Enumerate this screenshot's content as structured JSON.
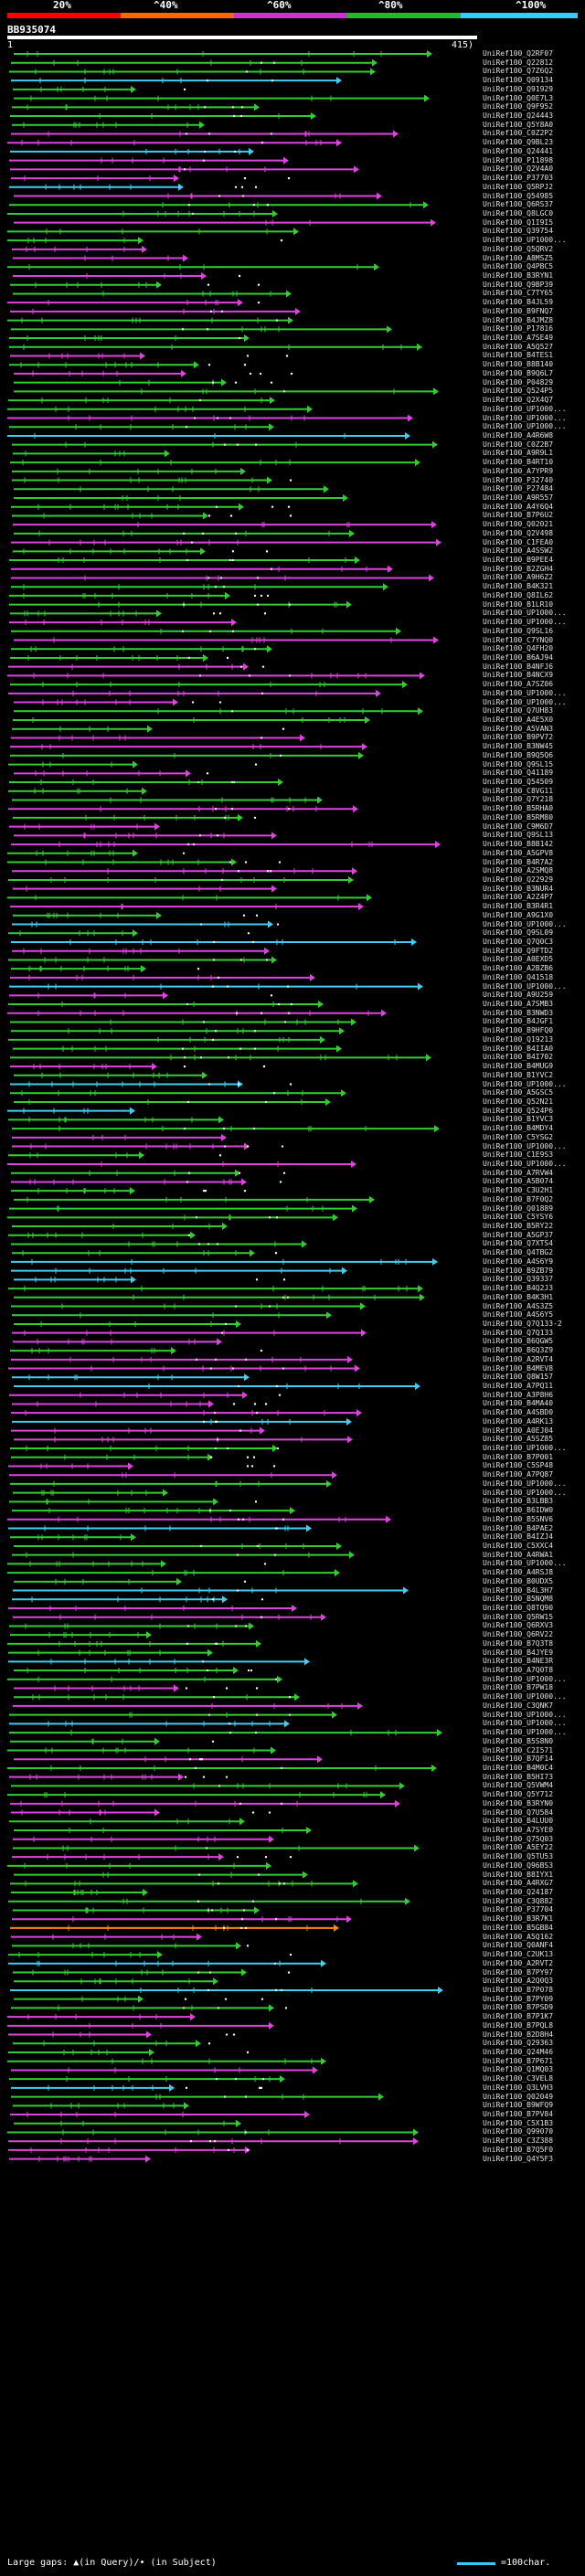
{
  "scale": {
    "labels": [
      "20%",
      "^40%",
      "^60%",
      "^80%",
      "^100%"
    ],
    "segments": [
      {
        "color": "#ff0000"
      },
      {
        "color": "#ff6600"
      },
      {
        "color": "#cc33cc"
      },
      {
        "color": "#22bb22"
      },
      {
        "color": "#33ccff"
      }
    ]
  },
  "query": {
    "id": "BB935074",
    "start": "1",
    "end": "415)"
  },
  "colors": {
    "green": "#33cc33",
    "magenta": "#dd44dd",
    "cyan": "#44ccee",
    "orange": "#ff8800",
    "label": "#e0e0e0"
  },
  "hits": [
    "UniRef100_Q2RF07",
    "UniRef100_Q22812",
    "UniRef100_Q7Z6Q2",
    "UniRef100_Q09134",
    "UniRef100_Q91929",
    "UniRef100_Q0E7L3",
    "UniRef100_Q9F952",
    "UniRef100_Q24443",
    "UniRef100_Q5Y8A0",
    "UniRef100_C0Z2P2",
    "UniRef100_Q9BL23",
    "UniRef100_Q24441",
    "UniRef100_P11898",
    "UniRef100_Q2V4A0",
    "UniRef100_P37703",
    "UniRef100_Q5RPJ2",
    "UniRef100_Q54985",
    "UniRef100_Q6RS37",
    "UniRef100_Q8LGC0",
    "UniRef100_Q1I9I5",
    "UniRef100_Q39754",
    "UniRef100_UP1000...",
    "UniRef100_Q5QRV2",
    "UniRef100_A8MSZ5",
    "UniRef100_Q4PBC5",
    "UniRef100_B3RYN1",
    "UniRef100_Q9BP39",
    "UniRef100_C7TY65",
    "UniRef100_B4JL59",
    "UniRef100_B9FNQ7",
    "UniRef100_B4JMZ8",
    "UniRef100_P17816",
    "UniRef100_A7SE49",
    "UniRef100_A5Q527",
    "UniRef100_B4TES1",
    "UniRef100_B8B140",
    "UniRef100_B9Q6L7",
    "UniRef100_P04829",
    "UniRef100_Q524P5",
    "UniRef100_Q2X4Q7",
    "UniRef100_UP1000...",
    "UniRef100_UP1000...",
    "UniRef100_UP1000...",
    "UniRef100_A4R6W8",
    "UniRef100_C0Z2B7",
    "UniRef100_A9R9L1",
    "UniRef100_B4RT10",
    "UniRef100_A7YPR9",
    "UniRef100_P32740",
    "UniRef100_P27484",
    "UniRef100_A9R557",
    "UniRef100_A4Y6Q4",
    "UniRef100_B7P6U2",
    "UniRef100_Q02021",
    "UniRef100_Q2V498",
    "UniRef100_C1FEA0",
    "UniRef100_A4SSW2",
    "UniRef100_B9PEE4",
    "UniRef100_B2ZGH4",
    "UniRef100_A9H6Z2",
    "UniRef100_B4K321",
    "UniRef100_Q8IL62",
    "UniRef100_B1LR10",
    "UniRef100_UP1000...",
    "UniRef100_UP1000...",
    "UniRef100_Q9SL16",
    "UniRef100_C7YNQ0",
    "UniRef100_Q4FH20",
    "UniRef100_B6AJ94",
    "UniRef100_B4NFJ6",
    "UniRef100_B4NCX9",
    "UniRef100_A7SZ06",
    "UniRef100_UP1000...",
    "UniRef100_UP1000...",
    "UniRef100_Q7UH83",
    "UniRef100_A4E5X0",
    "UniRef100_A5VAN3",
    "UniRef100_B9PV72",
    "UniRef100_B3NW45",
    "UniRef100_B9Q5Q6",
    "UniRef100_Q9SL15",
    "UniRef100_Q41189",
    "UniRef100_Q54509",
    "UniRef100_C8VG11",
    "UniRef100_Q7Y218",
    "UniRef100_B5RHA0",
    "UniRef100_B5RM80",
    "UniRef100_C9M6D7",
    "UniRef100_Q9SL13",
    "UniRef100_B8B142",
    "UniRef100_A5GPV8",
    "UniRef100_B4R7A2",
    "UniRef100_A2SMQ8",
    "UniRef100_Q22929",
    "UniRef100_B3NUR4",
    "UniRef100_A2Z4P7",
    "UniRef100_B3R4R1",
    "UniRef100_A9G1X0",
    "UniRef100_UP1000...",
    "UniRef100_Q9SL09",
    "UniRef100_Q7Q0C3",
    "UniRef100_Q9FTD2",
    "UniRef100_A0EXD5",
    "UniRef100_A2BZB6",
    "UniRef100_Q41518",
    "UniRef100_UP1000...",
    "UniRef100_A9U259",
    "UniRef100_A7SMB3",
    "UniRef100_B3NWD3",
    "UniRef100_B4JGF1",
    "UniRef100_B9HFQ0",
    "UniRef100_Q19213",
    "UniRef100_B4IIA0",
    "UniRef100_B4I702",
    "UniRef100_B4MUG9",
    "UniRef100_B1YVC2",
    "UniRef100_UP1000...",
    "UniRef100_A5GSC5",
    "UniRef100_Q52N21",
    "UniRef100_Q524P6",
    "UniRef100_B1YVC3",
    "UniRef100_B4MDY4",
    "UniRef100_C5YSG2",
    "UniRef100_UP1000...",
    "UniRef100_C1E9S3",
    "UniRef100_UP1000...",
    "UniRef100_A7RVW4",
    "UniRef100_A5B074",
    "UniRef100_C3U2H1",
    "UniRef100_B7F0Q2",
    "UniRef100_Q01889",
    "UniRef100_C5YSY6",
    "UniRef100_B5RY22",
    "UniRef100_A5GP37",
    "UniRef100_Q7XTS4",
    "UniRef100_Q4TBG2",
    "UniRef100_A4S6Y9",
    "UniRef100_B9ZB79",
    "UniRef100_Q39337",
    "UniRef100_B4Q2J3",
    "UniRef100_B4K3H1",
    "UniRef100_A4S3Z5",
    "UniRef100_A4S6Y5",
    "UniRef100_Q7Q133-2",
    "UniRef100_Q7Q133",
    "UniRef100_B6QGW5",
    "UniRef100_B6Q3Z9",
    "UniRef100_A2RVT4",
    "UniRef100_B4MEV8",
    "UniRef100_Q8W157",
    "UniRef100_A7PQ11",
    "UniRef100_A3P8H6",
    "UniRef100_B4MA40",
    "UniRef100_A4SBD0",
    "UniRef100_A4RK13",
    "UniRef100_A0EJ04",
    "UniRef100_A5SZ85",
    "UniRef100_UP1000...",
    "UniRef100_B7P001",
    "UniRef100_C5SP48",
    "UniRef100_A7PQ87",
    "UniRef100_UP1000...",
    "UniRef100_UP1000...",
    "UniRef100_B3LBB3",
    "UniRef100_B6IDW0",
    "UniRef100_B5SNV6",
    "UniRef100_B4PAE2",
    "UniRef100_B4IZJ4",
    "UniRef100_C5XXC4",
    "UniRef100_A4RWA1",
    "UniRef100_UP1000...",
    "UniRef100_A4RSJ8",
    "UniRef100_B0UDX5",
    "UniRef100_B4L3H7",
    "UniRef100_B5NQM8",
    "UniRef100_Q8TQ90",
    "UniRef100_Q5RW15",
    "UniRef100_Q6RXV3",
    "UniRef100_Q6RV22",
    "UniRef100_B7Q3T8",
    "UniRef100_B4JYE9",
    "UniRef100_B4NE3R",
    "UniRef100_A7Q0T8",
    "UniRef100_UP1000...",
    "UniRef100_B7PW18",
    "UniRef100_UP1000...",
    "UniRef100_C3QNK7",
    "UniRef100_UP1000...",
    "UniRef100_UP1000...",
    "UniRef100_UP1000...",
    "UniRef100_B5S8N0",
    "UniRef100_C2I571",
    "UniRef100_B7QF14",
    "UniRef100_B4M0C4",
    "UniRef100_B5HI73",
    "UniRef100_Q5VWM4",
    "UniRef100_Q5Y712",
    "UniRef100_B3RYN0",
    "UniRef100_Q7U584",
    "UniRef100_B4LUU0",
    "UniRef100_A7SYE0",
    "UniRef100_Q75Q03",
    "UniRef100_A5EY22",
    "UniRef100_Q5TU53",
    "UniRef100_Q96BS3",
    "UniRef100_B8IYX1",
    "UniRef100_A4RXG7",
    "UniRef100_Q24187",
    "UniRef100_C3Q882",
    "UniRef100_P37704",
    "UniRef100_B3R7K1",
    "UniRef100_B5GB84",
    "UniRef100_A5Q162",
    "UniRef100_Q0ANF4",
    "UniRef100_C2UK13",
    "UniRef100_A2RVT2",
    "UniRef100_B7PY97",
    "UniRef100_A2Q0Q3",
    "UniRef100_B7P078",
    "UniRef100_B7PY09",
    "UniRef100_B7PSD9",
    "UniRef100_B7P1K7",
    "UniRef100_B7PQL8",
    "UniRef100_B2D8H4",
    "UniRef100_Q29363",
    "UniRef100_Q24M46",
    "UniRef100_B7P671",
    "UniRef100_Q1MQ03",
    "UniRef100_C3VEL8",
    "UniRef100_Q3LVH3",
    "UniRef100_Q02049",
    "UniRef100_B9WFQ9",
    "UniRef100_B7PV84",
    "UniRef100_C5X1B3",
    "UniRef100_Q99070",
    "UniRef100_C3Z388",
    "UniRef100_B7Q5F0",
    "UniRef100_Q4Y5F3"
  ],
  "footer": {
    "gaps_text": "Large gaps: ▲(in Query)/• (in Subject)",
    "scale_text": "=100char."
  }
}
